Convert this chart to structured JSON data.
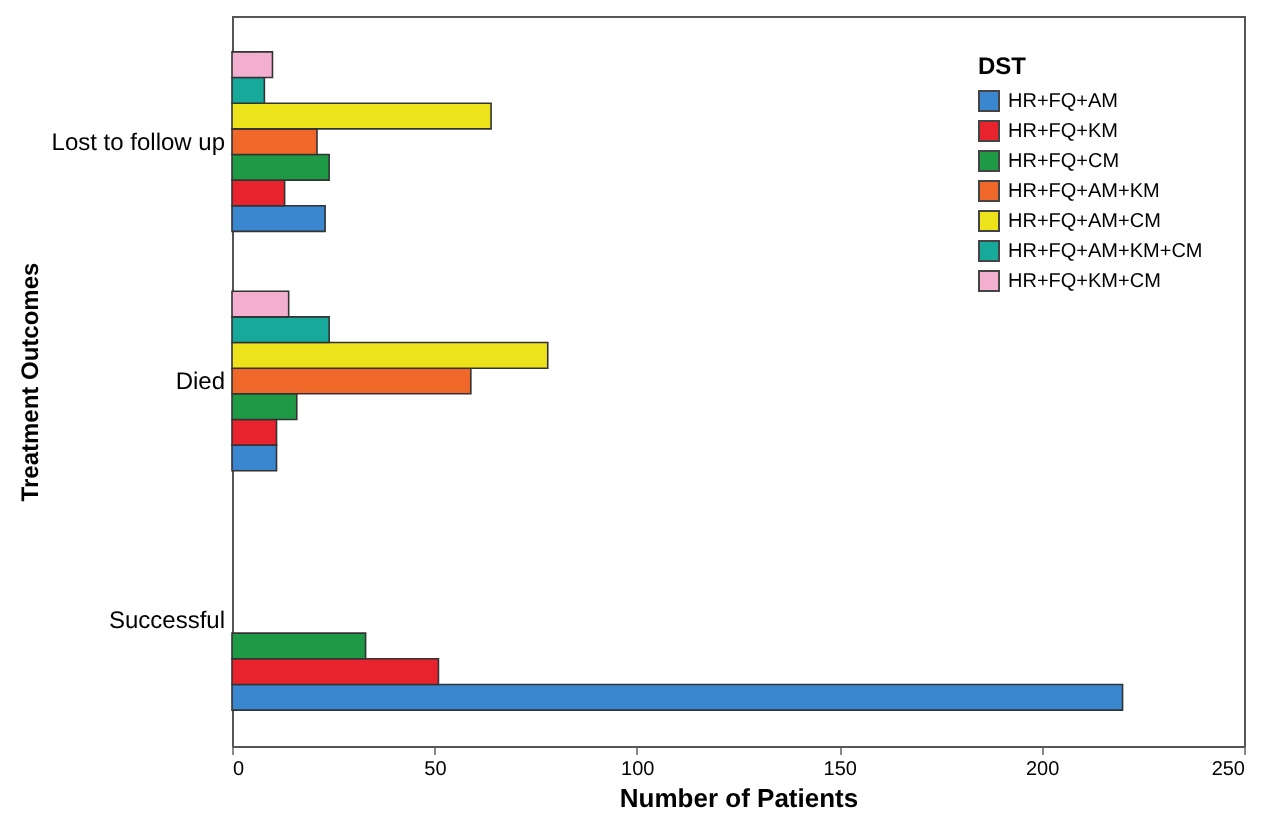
{
  "chart_data": {
    "type": "bar",
    "orientation": "horizontal",
    "xlabel": "Number of Patients",
    "ylabel": "Treatment Outcomes",
    "legend_title": "DST",
    "legend": "top right",
    "grid": false,
    "categories": [
      "Lost to follow up",
      "Died",
      "Successful"
    ],
    "xlim": [
      0,
      250
    ],
    "xticks": [
      0,
      50,
      100,
      150,
      200,
      250
    ],
    "series": [
      {
        "name": "HR+FQ+AM",
        "color": "#3a87d0",
        "values": [
          23,
          11,
          220
        ]
      },
      {
        "name": "HR+FQ+KM",
        "color": "#e8232e",
        "values": [
          13,
          11,
          51
        ]
      },
      {
        "name": "HR+FQ+CM",
        "color": "#1e9a46",
        "values": [
          24,
          16,
          33
        ]
      },
      {
        "name": "HR+FQ+AM+KM",
        "color": "#f0672a",
        "values": [
          21,
          59,
          null
        ]
      },
      {
        "name": "HR+FQ+AM+CM",
        "color": "#ede31a",
        "values": [
          64,
          78,
          null
        ]
      },
      {
        "name": "HR+FQ+AM+KM+CM",
        "color": "#17a99a",
        "values": [
          8,
          24,
          null
        ]
      },
      {
        "name": "HR+FQ+KM+CM",
        "color": "#f2afd0",
        "values": [
          10,
          14,
          null
        ]
      }
    ]
  }
}
